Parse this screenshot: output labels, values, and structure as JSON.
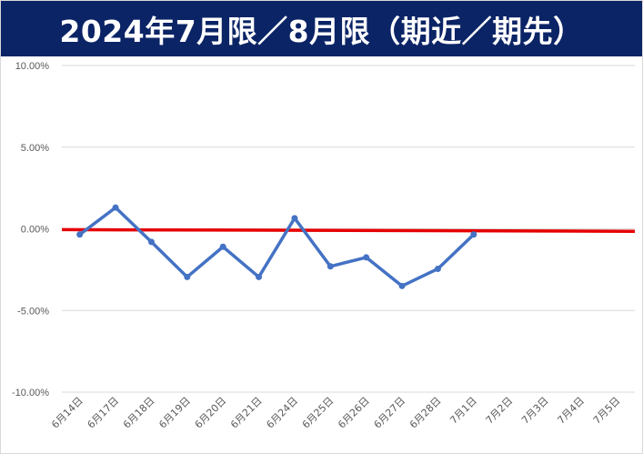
{
  "title": "2024年7月限／8月限（期近／期先）",
  "colors": {
    "title_bg": "#0b2466",
    "title_text": "#ffffff",
    "series_line": "#4472c4",
    "reference_line": "#e60000",
    "grid": "#d9d9d9",
    "tick_text": "#595959"
  },
  "chart_data": {
    "type": "line",
    "title": "2024年7月限／8月限（期近／期先）",
    "categories": [
      "6月14日",
      "6月17日",
      "6月18日",
      "6月19日",
      "6月20日",
      "6月21日",
      "6月24日",
      "6月25日",
      "6月26日",
      "6月27日",
      "6月28日",
      "7月1日",
      "7月2日",
      "7月3日",
      "7月4日",
      "7月5日"
    ],
    "series": [
      {
        "values": [
          -0.35,
          1.3,
          -0.8,
          -2.95,
          -1.1,
          -2.95,
          0.65,
          -2.3,
          -1.75,
          -3.5,
          -2.45,
          -0.35,
          null,
          null,
          null,
          null
        ]
      }
    ],
    "reference_line": {
      "start": -0.05,
      "end": -0.15
    },
    "y_unit": "percent",
    "ylim": [
      -10,
      10
    ],
    "yticks": [
      10,
      5,
      0,
      -5,
      -10
    ],
    "ytick_labels": [
      "10.00%",
      "5.00%",
      "0.00%",
      "-5.00%",
      "-10.00%"
    ],
    "grid": true,
    "legend": "none"
  }
}
